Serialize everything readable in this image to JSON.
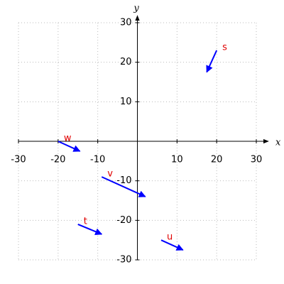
{
  "chart_data": {
    "type": "vector",
    "x_label": "x",
    "y_label": "y",
    "xlim": [
      -30,
      30
    ],
    "ylim": [
      -30,
      30
    ],
    "xticks": [
      -30,
      -20,
      -10,
      10,
      20,
      30
    ],
    "yticks": [
      -30,
      -20,
      -10,
      10,
      20,
      30
    ],
    "grid": true,
    "arrow_color": "#0000ff",
    "label_color": "#e00000",
    "vectors": [
      {
        "label": "s",
        "x": [
          20,
          17.5
        ],
        "y": [
          23,
          17.5
        ]
      },
      {
        "label": "w",
        "x": [
          -20,
          -14.5
        ],
        "y": [
          0,
          -2.5
        ]
      },
      {
        "label": "v",
        "x": [
          -9,
          2
        ],
        "y": [
          -9,
          -14
        ]
      },
      {
        "label": "t",
        "x": [
          -15,
          -9
        ],
        "y": [
          -21,
          -23.5
        ]
      },
      {
        "label": "u",
        "x": [
          6,
          11.5
        ],
        "y": [
          -25,
          -27.5
        ]
      }
    ]
  }
}
